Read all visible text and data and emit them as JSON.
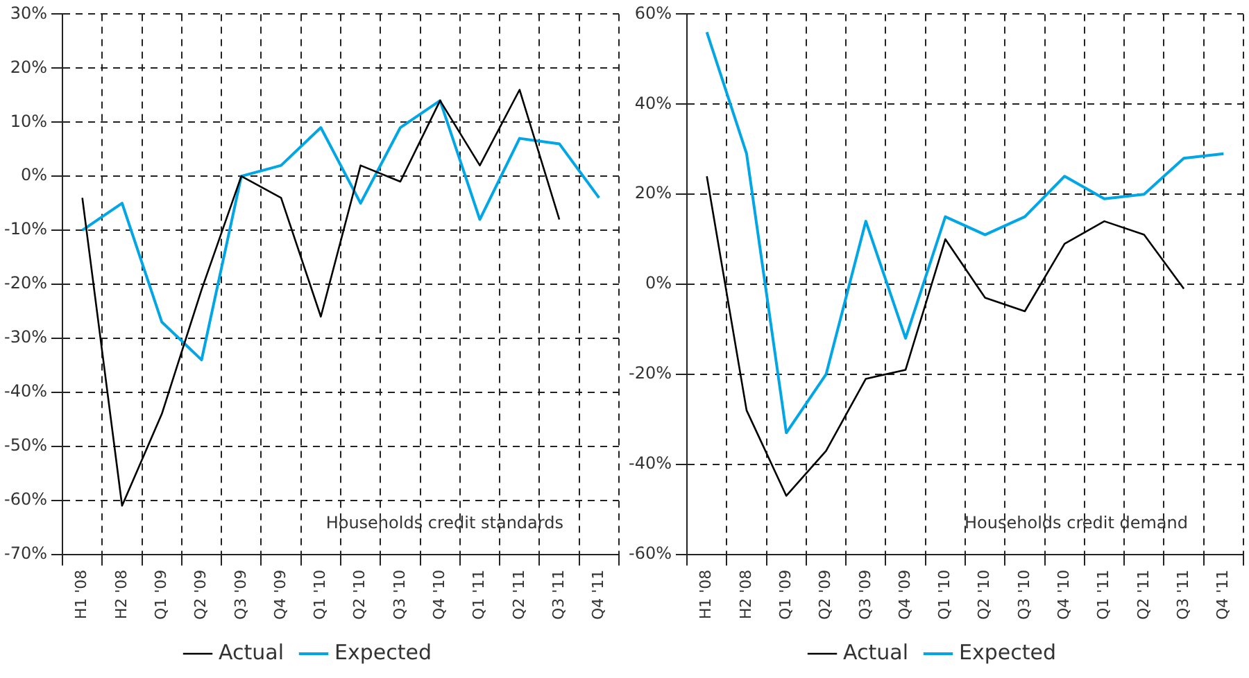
{
  "chart_data": [
    {
      "type": "line",
      "categories": [
        "H1 '08",
        "H2 '08",
        "Q1 '09",
        "Q2 '09",
        "Q3 '09",
        "Q4 '09",
        "Q1 '10",
        "Q2 '10",
        "Q3 '10",
        "Q4 '10",
        "Q1 '11",
        "Q2 '11",
        "Q3 '11",
        "Q4 '11"
      ],
      "series": [
        {
          "name": "Actual",
          "color": "#000000",
          "values": [
            -4,
            -61,
            -44,
            -21,
            0,
            -4,
            -26,
            2,
            -1,
            14,
            2,
            16,
            -8,
            null
          ]
        },
        {
          "name": "Expected",
          "color": "#00a6e6",
          "values": [
            -10,
            -5,
            -27,
            -34,
            0,
            2,
            9,
            -5,
            9,
            14,
            -8,
            7,
            6,
            -4
          ]
        }
      ],
      "ylim": [
        -70,
        30
      ],
      "yticks": [
        {
          "value": -70,
          "label": "-70%"
        },
        {
          "value": -60,
          "label": "-60%"
        },
        {
          "value": -50,
          "label": "-50%"
        },
        {
          "value": -40,
          "label": "-40%"
        },
        {
          "value": -30,
          "label": "-30%"
        },
        {
          "value": -20,
          "label": "-20%"
        },
        {
          "value": -10,
          "label": "-10%"
        },
        {
          "value": 0,
          "label": "0%"
        },
        {
          "value": 10,
          "label": "10%"
        },
        {
          "value": 20,
          "label": "20%"
        },
        {
          "value": 30,
          "label": "30%"
        }
      ],
      "annotations": [
        "Households credit standards"
      ],
      "grid": true,
      "legend": "bottom",
      "line_style": "solid",
      "marker": "none"
    },
    {
      "type": "line",
      "categories": [
        "H1 '08",
        "H2 '08",
        "Q1 '09",
        "Q2 '09",
        "Q3 '09",
        "Q4 '09",
        "Q1 '10",
        "Q2 '10",
        "Q3 '10",
        "Q4 '10",
        "Q1 '11",
        "Q2 '11",
        "Q3 '11",
        "Q4 '11"
      ],
      "series": [
        {
          "name": "Actual",
          "color": "#000000",
          "values": [
            24,
            -28,
            -47,
            -37,
            -21,
            -19,
            10,
            -3,
            -6,
            9,
            14,
            11,
            -1,
            null
          ]
        },
        {
          "name": "Expected",
          "color": "#00a6e6",
          "values": [
            56,
            29,
            -33,
            -20,
            14,
            -12,
            15,
            11,
            15,
            24,
            19,
            20,
            28,
            29
          ]
        }
      ],
      "ylim": [
        -60,
        60
      ],
      "yticks": [
        {
          "value": -60,
          "label": "-60%"
        },
        {
          "value": -40,
          "label": "-40%"
        },
        {
          "value": -20,
          "label": "-20%"
        },
        {
          "value": 0,
          "label": "0%"
        },
        {
          "value": 20,
          "label": "20%"
        },
        {
          "value": 40,
          "label": "40%"
        },
        {
          "value": 60,
          "label": "60%"
        }
      ],
      "annotations": [
        "Households credit demand"
      ],
      "grid": true,
      "legend": "bottom",
      "line_style": "solid",
      "marker": "none"
    }
  ]
}
